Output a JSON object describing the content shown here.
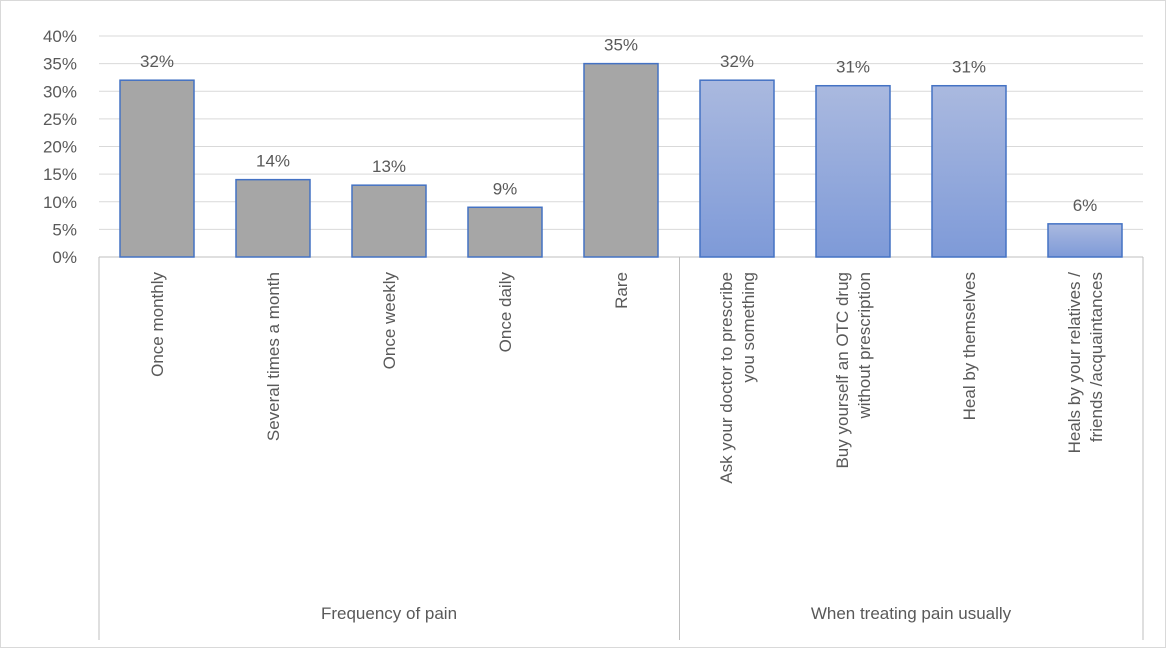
{
  "chart_data": {
    "type": "bar",
    "categories": [
      "Once monthly",
      "Several times a month",
      "Once weekly",
      "Once daily",
      "Rare",
      "Ask your doctor to prescribe you something",
      "Buy yourself an OTC drug without prescription",
      "Heal by themselves",
      "Heals by your relatives / friends /acquaintances"
    ],
    "category_lines": [
      [
        "Once monthly"
      ],
      [
        "Several times a month"
      ],
      [
        "Once weekly"
      ],
      [
        "Once daily"
      ],
      [
        "Rare"
      ],
      [
        "Ask your doctor to prescribe",
        "you something"
      ],
      [
        "Buy yourself an OTC drug",
        "without prescription"
      ],
      [
        "Heal by themselves"
      ],
      [
        "Heals by your relatives /",
        "friends /acquaintances"
      ]
    ],
    "values": [
      32,
      14,
      13,
      9,
      35,
      32,
      31,
      31,
      6
    ],
    "data_labels": [
      "32%",
      "14%",
      "13%",
      "9%",
      "35%",
      "32%",
      "31%",
      "31%",
      "6%"
    ],
    "groups": [
      {
        "label": "Frequency of pain",
        "categories": [
          0,
          1,
          2,
          3,
          4
        ]
      },
      {
        "label": "When treating pain usually",
        "categories": [
          5,
          6,
          7,
          8
        ]
      }
    ],
    "y_ticks": [
      "0%",
      "5%",
      "10%",
      "15%",
      "20%",
      "25%",
      "30%",
      "35%",
      "40%"
    ],
    "ylim": [
      0,
      40
    ],
    "y_unit": "%",
    "grid": true,
    "legend": "none",
    "title": "",
    "xlabel": "",
    "ylabel": ""
  },
  "colors": {
    "group_1_fill": "#a6a6a6",
    "group_1_stroke": "#4472c4",
    "group_2_fill_top": "#aab9df",
    "group_2_fill_bottom": "#7e9ad8",
    "group_2_stroke": "#4472c4",
    "grid": "#d9d9d9",
    "axis": "#bfbfbf",
    "text": "#595959"
  }
}
